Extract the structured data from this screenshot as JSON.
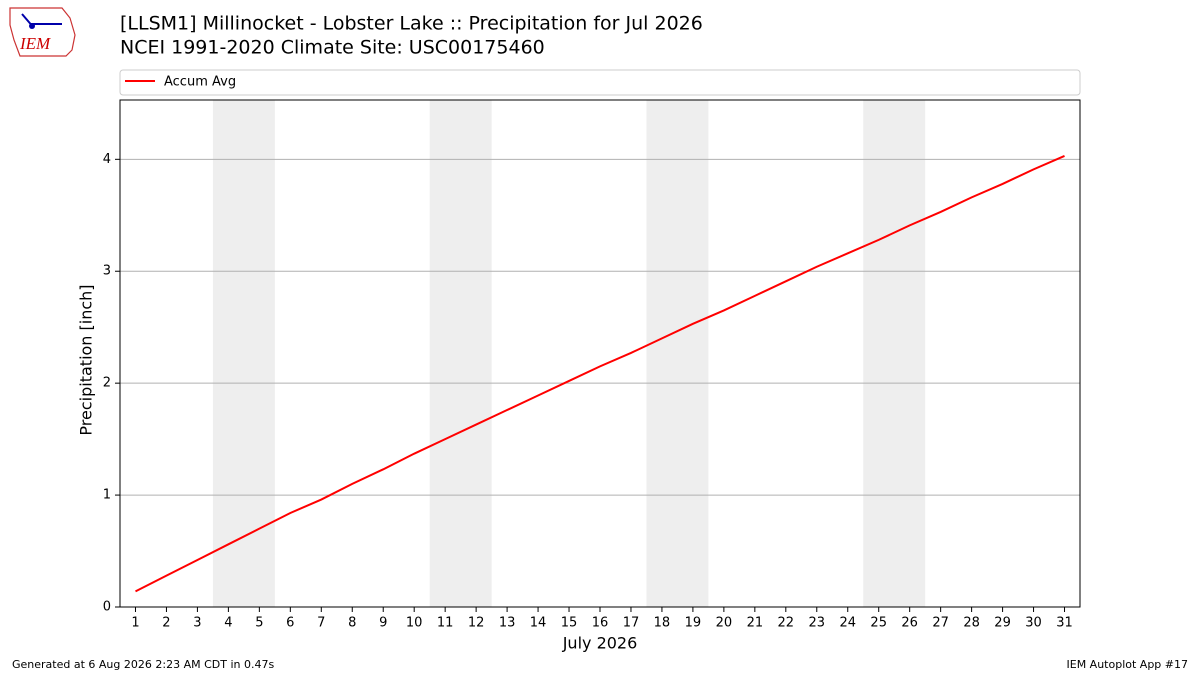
{
  "logo_text": "IEM",
  "chart_data": {
    "type": "line",
    "title": "[LLSM1] Millinocket - Lobster Lake :: Precipitation for Jul 2026",
    "subtitle": "NCEI 1991-2020 Climate Site: USC00175460",
    "xlabel": "July 2026",
    "ylabel": "Precipitation [inch]",
    "x": [
      1,
      2,
      3,
      4,
      5,
      6,
      7,
      8,
      9,
      10,
      11,
      12,
      13,
      14,
      15,
      16,
      17,
      18,
      19,
      20,
      21,
      22,
      23,
      24,
      25,
      26,
      27,
      28,
      29,
      30,
      31
    ],
    "series": [
      {
        "name": "Accum Avg",
        "color": "#ff0000",
        "values": [
          0.14,
          0.28,
          0.42,
          0.56,
          0.7,
          0.84,
          0.96,
          1.1,
          1.23,
          1.37,
          1.5,
          1.63,
          1.76,
          1.89,
          2.02,
          2.15,
          2.27,
          2.4,
          2.53,
          2.65,
          2.78,
          2.91,
          3.04,
          3.16,
          3.28,
          3.41,
          3.53,
          3.66,
          3.78,
          3.91,
          4.03
        ]
      }
    ],
    "xlim": [
      0.5,
      31.5
    ],
    "xticks": [
      1,
      2,
      3,
      4,
      5,
      6,
      7,
      8,
      9,
      10,
      11,
      12,
      13,
      14,
      15,
      16,
      17,
      18,
      19,
      20,
      21,
      22,
      23,
      24,
      25,
      26,
      27,
      28,
      29,
      30,
      31
    ],
    "ylim": [
      0,
      4.53
    ],
    "yticks": [
      0,
      1,
      2,
      3,
      4
    ],
    "grid": true,
    "shaded_x_ranges": [
      [
        3.5,
        5.5
      ],
      [
        10.5,
        12.5
      ],
      [
        17.5,
        19.5
      ],
      [
        24.5,
        26.5
      ]
    ],
    "shade_color": "#eeeeee"
  },
  "footer": {
    "left": "Generated at 6 Aug 2026 2:23 AM CDT in 0.47s",
    "right": "IEM Autoplot App #17"
  }
}
